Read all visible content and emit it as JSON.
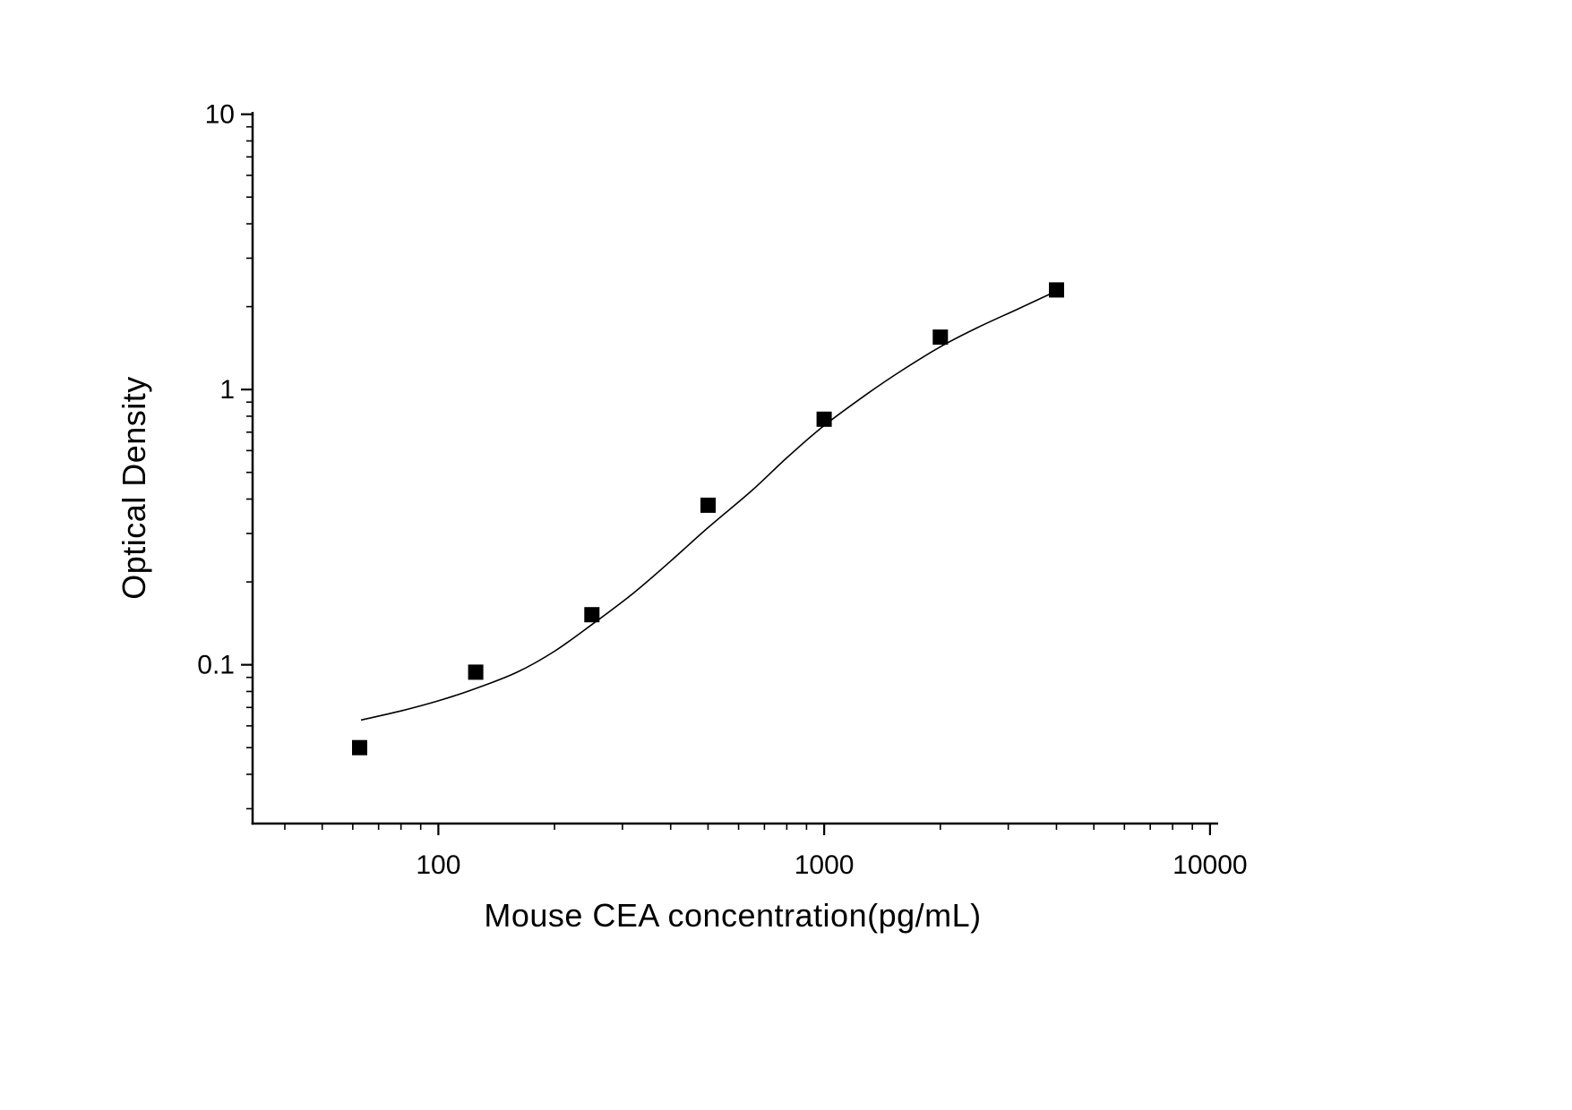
{
  "chart_data": {
    "type": "scatter",
    "title": "",
    "xlabel": "Mouse CEA concentration(pg/mL)",
    "ylabel": "Optical Density",
    "x_scale": "log",
    "y_scale": "log",
    "xlim": [
      33,
      10500
    ],
    "ylim": [
      0.0265,
      10.2
    ],
    "x_ticks": [
      100,
      1000,
      10000
    ],
    "y_ticks": [
      0.1,
      1,
      10
    ],
    "grid": false,
    "legend": "none",
    "series": [
      {
        "name": "standard-points",
        "marker": "square",
        "color": "#000000",
        "x": [
          62.5,
          125,
          250,
          500,
          1000,
          2000,
          4000
        ],
        "y": [
          0.05,
          0.094,
          0.152,
          0.38,
          0.78,
          1.55,
          2.3
        ]
      }
    ],
    "fit_curve": {
      "name": "4pl-fit",
      "color": "#000000",
      "x": [
        63,
        80,
        100,
        125,
        160,
        200,
        250,
        320,
        400,
        500,
        650,
        800,
        1000,
        1300,
        1600,
        2000,
        2500,
        3200,
        4000
      ],
      "y": [
        0.063,
        0.068,
        0.074,
        0.082,
        0.094,
        0.112,
        0.14,
        0.182,
        0.238,
        0.315,
        0.43,
        0.565,
        0.74,
        0.97,
        1.18,
        1.43,
        1.68,
        1.97,
        2.28
      ]
    },
    "colors": {
      "axis": "#000000",
      "marker": "#000000",
      "curve": "#000000",
      "background": "#ffffff"
    }
  }
}
